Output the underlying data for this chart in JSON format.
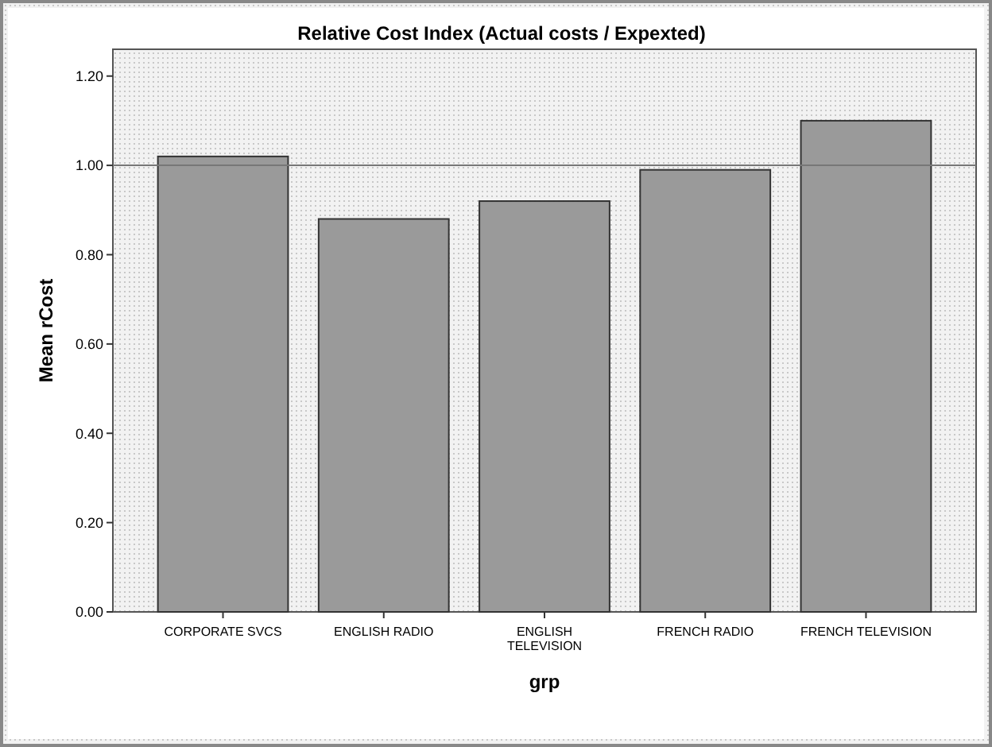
{
  "chart_data": {
    "type": "bar",
    "title": "Relative Cost Index (Actual costs / Expexted)",
    "xlabel": "grp",
    "ylabel": "Mean rCost",
    "categories": [
      "CORPORATE SVCS",
      "ENGLISH RADIO",
      "ENGLISH TELEVISION",
      "FRENCH RADIO",
      "FRENCH TELEVISION"
    ],
    "values": [
      1.02,
      0.88,
      0.92,
      0.99,
      1.1
    ],
    "color": "#9a9a9a",
    "ylim": [
      0,
      1.26
    ],
    "yticks": [
      {
        "value": 0,
        "label": "0.00"
      },
      {
        "value": 0.2,
        "label": "0.20"
      },
      {
        "value": 0.4,
        "label": "0.40"
      },
      {
        "value": 0.6,
        "label": "0.60"
      },
      {
        "value": 0.8,
        "label": "0.80"
      },
      {
        "value": 1,
        "label": "1.00"
      },
      {
        "value": 1.2,
        "label": "1.20"
      }
    ],
    "ref_lines": [
      {
        "axis": "y",
        "value": 1,
        "color": "#777777"
      }
    ],
    "grid": false
  }
}
